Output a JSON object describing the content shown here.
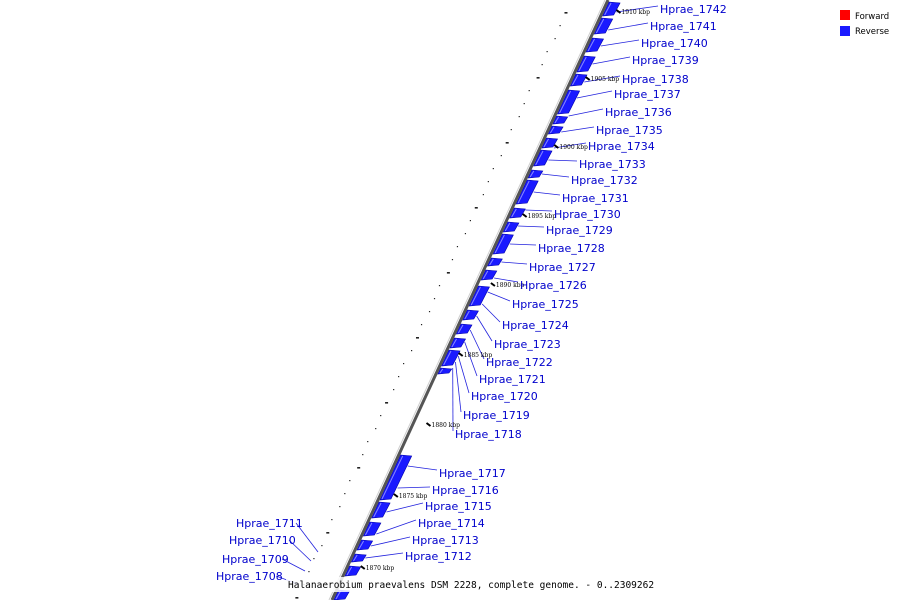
{
  "legend": {
    "forward_label": "Forward",
    "reverse_label": "Reverse",
    "forward_color": "#ff0000",
    "reverse_color": "#1a1aff"
  },
  "caption": "Halanaerobium praevalens DSM 2228, complete genome. - 0..2309262",
  "ticks": [
    "1910 kbp",
    "1905 kbp",
    "1900 kbp",
    "1895 kbp",
    "1890 kbp",
    "1885 kbp",
    "1880 kbp",
    "1875 kbp",
    "1870 kbp"
  ],
  "genes": [
    "Hprae_1742",
    "Hprae_1741",
    "Hprae_1740",
    "Hprae_1739",
    "Hprae_1738",
    "Hprae_1737",
    "Hprae_1736",
    "Hprae_1735",
    "Hprae_1734",
    "Hprae_1733",
    "Hprae_1732",
    "Hprae_1731",
    "Hprae_1730",
    "Hprae_1729",
    "Hprae_1728",
    "Hprae_1727",
    "Hprae_1726",
    "Hprae_1725",
    "Hprae_1724",
    "Hprae_1723",
    "Hprae_1722",
    "Hprae_1721",
    "Hprae_1720",
    "Hprae_1719",
    "Hprae_1718",
    "Hprae_1717",
    "Hprae_1716",
    "Hprae_1715",
    "Hprae_1714",
    "Hprae_1713",
    "Hprae_1712",
    "Hprae_1711",
    "Hprae_1710",
    "Hprae_1709",
    "Hprae_1708"
  ]
}
